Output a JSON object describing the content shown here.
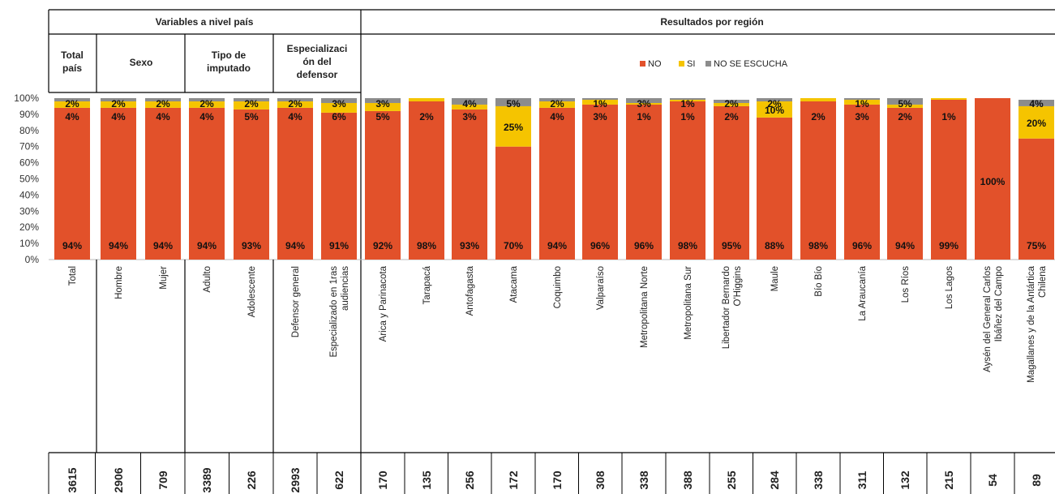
{
  "colors": {
    "NO": "#E2512A",
    "SI": "#F5C400",
    "NO SE ESCUCHA": "#8C8C8C",
    "grid": "#000000"
  },
  "headers": {
    "country": "Variables a nivel país",
    "region": "Resultados por región",
    "total": "Total país",
    "sex": "Sexo",
    "imputado": "Tipo de imputado",
    "defensor": "Especialización del defensor"
  },
  "chart_data": {
    "type": "bar",
    "stacked": true,
    "ylim": [
      0,
      100
    ],
    "yticks": [
      "0%",
      "10%",
      "20%",
      "30%",
      "40%",
      "50%",
      "60%",
      "70%",
      "80%",
      "90%",
      "100%"
    ],
    "legend": {
      "position": "top-center",
      "entries": [
        "NO",
        "SI",
        "NO SE ESCUCHA"
      ]
    },
    "categories": [
      "Total",
      "Hombre",
      "Mujer",
      "Adulto",
      "Adolescente",
      "Defensor general",
      "Especializado en 1ras audiencias",
      "Arica y Parinacota",
      "Tarapacá",
      "Antofagasta",
      "Atacama",
      "Coquimbo",
      "Valparaíso",
      "Metropolitana Norte",
      "Metropolitana Sur",
      "Libertador Bernardo O'Higgins",
      "Maule",
      "Bío Bío",
      "La Araucanía",
      "Los Ríos",
      "Los Lagos",
      "Aysén del General Carlos Ibáñez del Campo",
      "Magallanes y de la Antártica Chilena"
    ],
    "series": [
      {
        "name": "NO",
        "values": [
          94,
          94,
          94,
          94,
          93,
          94,
          91,
          92,
          98,
          93,
          70,
          94,
          96,
          96,
          98,
          95,
          88,
          98,
          96,
          94,
          99,
          100,
          75
        ]
      },
      {
        "name": "SI",
        "values": [
          4,
          4,
          4,
          4,
          5,
          4,
          6,
          5,
          2,
          3,
          25,
          4,
          3,
          1,
          1,
          2,
          10,
          2,
          3,
          2,
          1,
          0,
          20
        ]
      },
      {
        "name": "NO SE ESCUCHA",
        "values": [
          2,
          2,
          2,
          2,
          2,
          2,
          3,
          3,
          0,
          4,
          5,
          2,
          1,
          3,
          1,
          2,
          2,
          0,
          1,
          5,
          0,
          0,
          4
        ]
      }
    ],
    "labels": {
      "NO": [
        "94%",
        "94%",
        "94%",
        "94%",
        "93%",
        "94%",
        "91%",
        "92%",
        "98%",
        "93%",
        "70%",
        "94%",
        "96%",
        "96%",
        "98%",
        "95%",
        "88%",
        "98%",
        "96%",
        "94%",
        "99%",
        "100%",
        "75%"
      ],
      "SI": [
        "4%",
        "4%",
        "4%",
        "4%",
        "5%",
        "4%",
        "6%",
        "5%",
        "2%",
        "3%",
        "25%",
        "4%",
        "3%",
        "1%",
        "1%",
        "2%",
        "10%",
        "2%",
        "3%",
        "2%",
        "1%",
        "",
        "20%"
      ],
      "NO SE ESCUCHA": [
        "2%",
        "2%",
        "2%",
        "2%",
        "2%",
        "2%",
        "3%",
        "3%",
        "",
        "4%",
        "5%",
        "2%",
        "1%",
        "3%",
        "1%",
        "2%",
        "2%",
        "",
        "1%",
        "5%",
        "",
        "",
        "4%"
      ]
    },
    "n": [
      "3615",
      "2906",
      "709",
      "3389",
      "226",
      "2993",
      "622",
      "170",
      "135",
      "256",
      "172",
      "170",
      "308",
      "338",
      "388",
      "255",
      "284",
      "338",
      "311",
      "132",
      "215",
      "54",
      "89"
    ]
  }
}
